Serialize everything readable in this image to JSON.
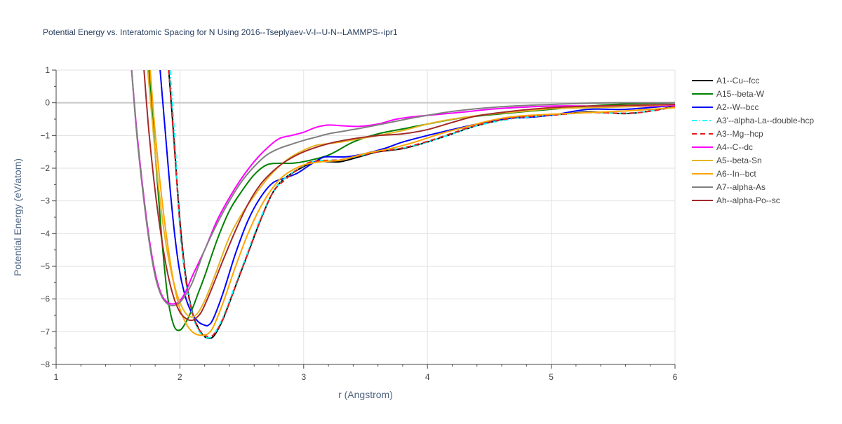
{
  "chart_data": {
    "type": "line",
    "title": "Potential Energy vs. Interatomic Spacing for N Using 2016--Tseplyaev-V-I--U-N--LAMMPS--ipr1",
    "xlabel": "r (Angstrom)",
    "ylabel": "Potential Energy (eV/atom)",
    "xlim": [
      1,
      6
    ],
    "ylim": [
      -8,
      1
    ],
    "xticks": [
      1,
      2,
      3,
      4,
      5,
      6
    ],
    "yticks": [
      1,
      0,
      -1,
      -2,
      -3,
      -4,
      -5,
      -6,
      -7,
      -8
    ],
    "xtick_labels": [
      "1",
      "2",
      "3",
      "4",
      "5",
      "6"
    ],
    "ytick_labels": [
      "1",
      "0",
      "−1",
      "−2",
      "−3",
      "−4",
      "−5",
      "−6",
      "−7",
      "−8"
    ],
    "grid": true,
    "legend_position": "right",
    "series": [
      {
        "name": "A1--Cu--fcc",
        "color": "#000000",
        "dash": "solid",
        "x": [
          1.91,
          1.95,
          2.0,
          2.05,
          2.1,
          2.15,
          2.2,
          2.24,
          2.28,
          2.35,
          2.45,
          2.55,
          2.65,
          2.75,
          2.85,
          3.0,
          3.1,
          3.2,
          3.3,
          3.45,
          3.6,
          3.8,
          4.0,
          4.2,
          4.4,
          4.7,
          5.0,
          5.3,
          5.6,
          5.8,
          6.0
        ],
        "y": [
          1.0,
          -1.0,
          -3.6,
          -5.4,
          -6.4,
          -6.9,
          -7.15,
          -7.2,
          -7.1,
          -6.6,
          -5.6,
          -4.6,
          -3.6,
          -2.75,
          -2.3,
          -1.95,
          -1.8,
          -1.8,
          -1.8,
          -1.65,
          -1.5,
          -1.4,
          -1.2,
          -0.95,
          -0.7,
          -0.45,
          -0.38,
          -0.28,
          -0.33,
          -0.25,
          -0.1
        ]
      },
      {
        "name": "A15--beta-W",
        "color": "#008000",
        "dash": "solid",
        "x": [
          1.75,
          1.8,
          1.85,
          1.9,
          1.95,
          2.0,
          2.05,
          2.1,
          2.15,
          2.2,
          2.3,
          2.4,
          2.5,
          2.6,
          2.7,
          2.8,
          2.9,
          3.0,
          3.2,
          3.4,
          3.6,
          3.8,
          4.0,
          4.3,
          4.7,
          5.0,
          5.5,
          6.0
        ],
        "y": [
          1.0,
          -1.5,
          -4.0,
          -5.9,
          -6.8,
          -6.95,
          -6.7,
          -6.3,
          -5.8,
          -5.3,
          -4.2,
          -3.3,
          -2.7,
          -2.2,
          -1.9,
          -1.85,
          -1.85,
          -1.8,
          -1.6,
          -1.2,
          -0.95,
          -0.8,
          -0.65,
          -0.45,
          -0.3,
          -0.2,
          -0.05,
          0.0
        ]
      },
      {
        "name": "A2--W--bcc",
        "color": "#0000ff",
        "dash": "solid",
        "x": [
          1.84,
          1.88,
          1.92,
          1.96,
          2.0,
          2.05,
          2.1,
          2.15,
          2.2,
          2.23,
          2.27,
          2.35,
          2.45,
          2.55,
          2.65,
          2.75,
          2.85,
          2.95,
          3.05,
          3.15,
          3.2,
          3.35,
          3.5,
          3.65,
          3.8,
          4.0,
          4.2,
          4.4,
          4.6,
          4.8,
          5.0,
          5.3,
          5.6,
          6.0
        ],
        "y": [
          1.0,
          -0.8,
          -2.6,
          -4.1,
          -5.2,
          -6.0,
          -6.45,
          -6.7,
          -6.8,
          -6.8,
          -6.6,
          -5.8,
          -4.6,
          -3.6,
          -2.9,
          -2.45,
          -2.3,
          -2.15,
          -1.9,
          -1.68,
          -1.65,
          -1.65,
          -1.55,
          -1.4,
          -1.2,
          -1.0,
          -0.82,
          -0.65,
          -0.5,
          -0.45,
          -0.38,
          -0.2,
          -0.2,
          -0.08
        ]
      },
      {
        "name": "A3'--alpha-La--double-hcp",
        "color": "#00ffff",
        "dash": "dashdot",
        "x": [
          1.92,
          1.96,
          2.0,
          2.05,
          2.1,
          2.15,
          2.2,
          2.24,
          2.28,
          2.35,
          2.45,
          2.55,
          2.65,
          2.75,
          2.85,
          3.0,
          3.1,
          3.2,
          3.3,
          3.45,
          3.6,
          3.8,
          4.0,
          4.2,
          4.4,
          4.7,
          5.0,
          5.3,
          5.6,
          5.8,
          6.0
        ],
        "y": [
          1.0,
          -1.2,
          -3.8,
          -5.5,
          -6.45,
          -6.95,
          -7.15,
          -7.18,
          -7.05,
          -6.55,
          -5.55,
          -4.55,
          -3.55,
          -2.75,
          -2.3,
          -1.92,
          -1.78,
          -1.76,
          -1.74,
          -1.62,
          -1.48,
          -1.38,
          -1.2,
          -0.95,
          -0.7,
          -0.48,
          -0.38,
          -0.3,
          -0.32,
          -0.25,
          -0.12
        ]
      },
      {
        "name": "A3--Mg--hcp",
        "color": "#e41a1c",
        "dash": "dash",
        "x": [
          1.91,
          1.95,
          2.0,
          2.05,
          2.1,
          2.15,
          2.2,
          2.24,
          2.28,
          2.35,
          2.45,
          2.55,
          2.65,
          2.75,
          2.85,
          3.0,
          3.1,
          3.2,
          3.3,
          3.45,
          3.6,
          3.8,
          4.0,
          4.2,
          4.4,
          4.7,
          5.0,
          5.3,
          5.6,
          5.8,
          6.0
        ],
        "y": [
          1.0,
          -1.1,
          -3.7,
          -5.45,
          -6.4,
          -6.9,
          -7.1,
          -7.15,
          -7.05,
          -6.6,
          -5.6,
          -4.6,
          -3.6,
          -2.75,
          -2.35,
          -1.9,
          -1.78,
          -1.76,
          -1.74,
          -1.62,
          -1.5,
          -1.38,
          -1.18,
          -0.93,
          -0.68,
          -0.46,
          -0.38,
          -0.3,
          -0.32,
          -0.26,
          -0.12
        ]
      },
      {
        "name": "A4--C--dc",
        "color": "#ff00ff",
        "dash": "solid",
        "x": [
          1.61,
          1.65,
          1.7,
          1.75,
          1.8,
          1.85,
          1.9,
          1.95,
          2.0,
          2.05,
          2.1,
          2.2,
          2.3,
          2.4,
          2.5,
          2.6,
          2.7,
          2.8,
          2.9,
          3.0,
          3.1,
          3.2,
          3.3,
          3.45,
          3.6,
          3.75,
          3.9,
          4.1,
          4.3,
          4.5,
          4.7,
          5.0,
          5.3,
          5.6,
          6.0
        ],
        "y": [
          1.0,
          -0.8,
          -2.6,
          -4.1,
          -5.2,
          -5.85,
          -6.1,
          -6.15,
          -6.05,
          -5.75,
          -5.3,
          -4.5,
          -3.6,
          -2.9,
          -2.3,
          -1.8,
          -1.4,
          -1.1,
          -1.0,
          -0.9,
          -0.75,
          -0.68,
          -0.7,
          -0.72,
          -0.65,
          -0.5,
          -0.42,
          -0.35,
          -0.28,
          -0.2,
          -0.15,
          -0.1,
          -0.1,
          -0.12,
          -0.08
        ]
      },
      {
        "name": "A5--beta-Sn",
        "color": "#e6b422",
        "dash": "solid",
        "x": [
          1.74,
          1.78,
          1.82,
          1.86,
          1.9,
          1.95,
          2.0,
          2.05,
          2.1,
          2.15,
          2.2,
          2.25,
          2.3,
          2.4,
          2.5,
          2.6,
          2.7,
          2.8,
          2.9,
          3.0,
          3.1,
          3.2,
          3.3,
          3.45,
          3.6,
          3.8,
          4.0,
          4.2,
          4.5,
          4.8,
          5.0,
          5.3,
          5.6,
          6.0
        ],
        "y": [
          1.0,
          -0.7,
          -2.3,
          -3.6,
          -4.6,
          -5.5,
          -6.1,
          -6.45,
          -6.55,
          -6.4,
          -6.05,
          -5.6,
          -5.1,
          -4.1,
          -3.4,
          -2.85,
          -2.35,
          -1.95,
          -1.65,
          -1.45,
          -1.3,
          -1.25,
          -1.2,
          -1.1,
          -1.0,
          -0.85,
          -0.65,
          -0.5,
          -0.35,
          -0.25,
          -0.18,
          -0.15,
          -0.12,
          -0.05
        ]
      },
      {
        "name": "A6--In--bct",
        "color": "#ffa500",
        "dash": "solid",
        "x": [
          1.76,
          1.8,
          1.85,
          1.9,
          1.95,
          2.0,
          2.05,
          2.1,
          2.15,
          2.2,
          2.23,
          2.27,
          2.35,
          2.45,
          2.55,
          2.65,
          2.75,
          2.85,
          3.0,
          3.15,
          3.3,
          3.5,
          3.7,
          3.9,
          4.1,
          4.3,
          4.5,
          4.7,
          5.0,
          5.3,
          5.6,
          6.0
        ],
        "y": [
          1.0,
          -0.9,
          -2.8,
          -4.3,
          -5.5,
          -6.3,
          -6.75,
          -7.0,
          -7.1,
          -7.1,
          -7.05,
          -6.85,
          -6.1,
          -5.0,
          -4.0,
          -3.2,
          -2.6,
          -2.2,
          -1.9,
          -1.8,
          -1.75,
          -1.55,
          -1.4,
          -1.2,
          -0.95,
          -0.75,
          -0.55,
          -0.42,
          -0.35,
          -0.3,
          -0.25,
          -0.15
        ]
      },
      {
        "name": "A7--alpha-As",
        "color": "#808080",
        "dash": "solid",
        "x": [
          1.61,
          1.65,
          1.7,
          1.75,
          1.8,
          1.85,
          1.9,
          1.95,
          2.0,
          2.05,
          2.1,
          2.15,
          2.2,
          2.3,
          2.4,
          2.5,
          2.6,
          2.7,
          2.8,
          2.9,
          3.0,
          3.1,
          3.2,
          3.35,
          3.5,
          3.7,
          3.9,
          4.1,
          4.3,
          4.6,
          5.0,
          5.5,
          6.0
        ],
        "y": [
          1.0,
          -0.9,
          -2.7,
          -4.2,
          -5.3,
          -5.9,
          -6.15,
          -6.2,
          -6.1,
          -5.85,
          -5.5,
          -5.0,
          -4.5,
          -3.7,
          -3.0,
          -2.4,
          -1.95,
          -1.6,
          -1.4,
          -1.27,
          -1.15,
          -1.05,
          -0.95,
          -0.85,
          -0.75,
          -0.6,
          -0.45,
          -0.32,
          -0.22,
          -0.12,
          -0.05,
          0.0,
          0.0
        ]
      },
      {
        "name": "Ah--alpha-Po--sc",
        "color": "#a52a2a",
        "dash": "solid",
        "x": [
          1.71,
          1.75,
          1.8,
          1.85,
          1.9,
          1.95,
          2.0,
          2.05,
          2.1,
          2.14,
          2.18,
          2.25,
          2.35,
          2.45,
          2.55,
          2.65,
          2.75,
          2.85,
          3.0,
          3.2,
          3.4,
          3.6,
          3.8,
          4.0,
          4.2,
          4.4,
          4.7,
          5.0,
          5.3,
          5.6,
          6.0
        ],
        "y": [
          1.0,
          -0.9,
          -2.7,
          -4.1,
          -5.2,
          -5.95,
          -6.4,
          -6.6,
          -6.65,
          -6.55,
          -6.35,
          -5.75,
          -4.8,
          -3.9,
          -3.1,
          -2.5,
          -2.1,
          -1.8,
          -1.5,
          -1.25,
          -1.1,
          -1.0,
          -0.95,
          -0.82,
          -0.6,
          -0.4,
          -0.25,
          -0.15,
          -0.1,
          -0.08,
          -0.05
        ]
      }
    ]
  }
}
